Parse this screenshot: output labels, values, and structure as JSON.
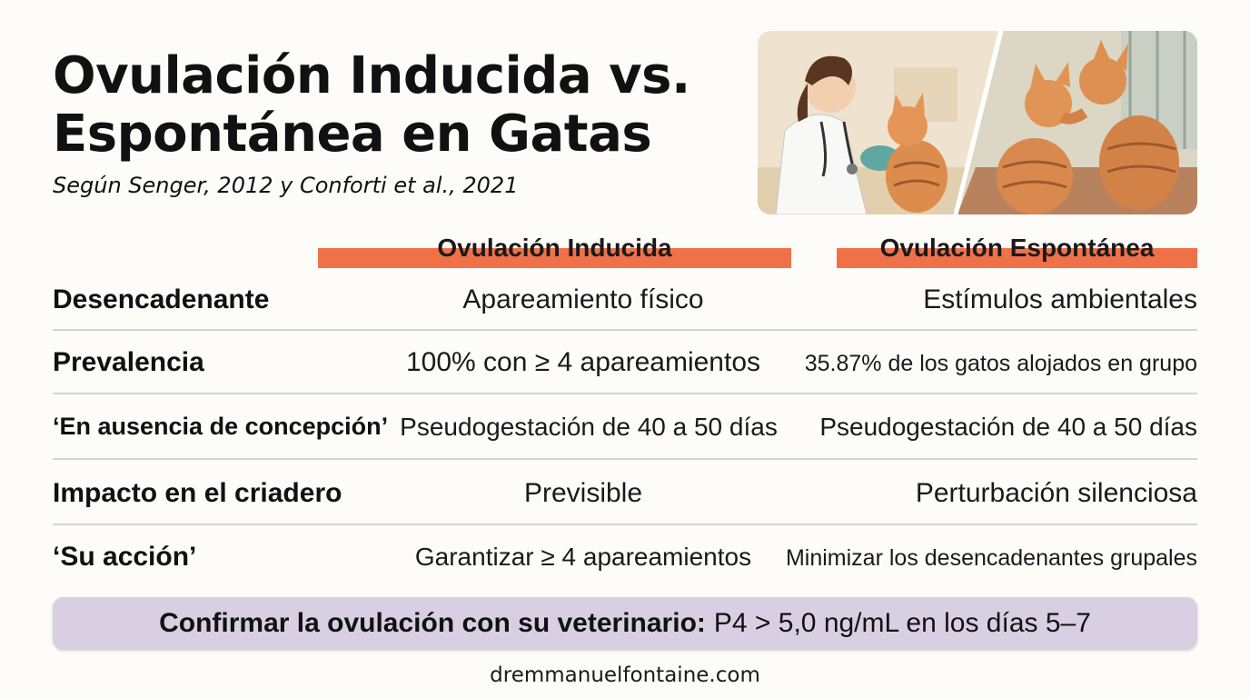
{
  "header": {
    "title_line1": "Ovulación Inducida vs.",
    "title_line2": "Espontánea en Gatas",
    "subtitle": "Según Senger, 2012 y Conforti et al., 2021"
  },
  "columns": {
    "induced": "Ovulación Inducida",
    "spontaneous": "Ovulación Espontánea"
  },
  "rows": [
    {
      "label": "Desencadenante",
      "induced": "Apareamiento físico",
      "spontaneous": "Estímulos ambientales"
    },
    {
      "label": "Prevalencia",
      "induced": "100% con ≥ 4 apareamientos",
      "spontaneous": "35.87% de los gatos alojados en grupo"
    },
    {
      "label": "‘En ausencia de concepción’",
      "induced": "Pseudogestación de 40 a 50 días",
      "spontaneous": "Pseudogestación de 40 a 50 días"
    },
    {
      "label": "Impacto en el criadero",
      "induced": "Previsible",
      "spontaneous": "Perturbación silenciosa"
    },
    {
      "label": "‘Su acción’",
      "induced": "Garantizar ≥ 4 apareamientos",
      "spontaneous": "Minimizar los desencadenantes grupales"
    }
  ],
  "banner": {
    "bold": "Confirmar la ovulación con su veterinario:",
    "text": "P4 > 5,0 ng/mL en los días 5–7"
  },
  "footer": {
    "site": "dremmanuelfontaine.com"
  },
  "colors": {
    "header_bar": "#f07148",
    "banner_bg": "#d9cfe2",
    "divider": "#d4d4d4"
  }
}
